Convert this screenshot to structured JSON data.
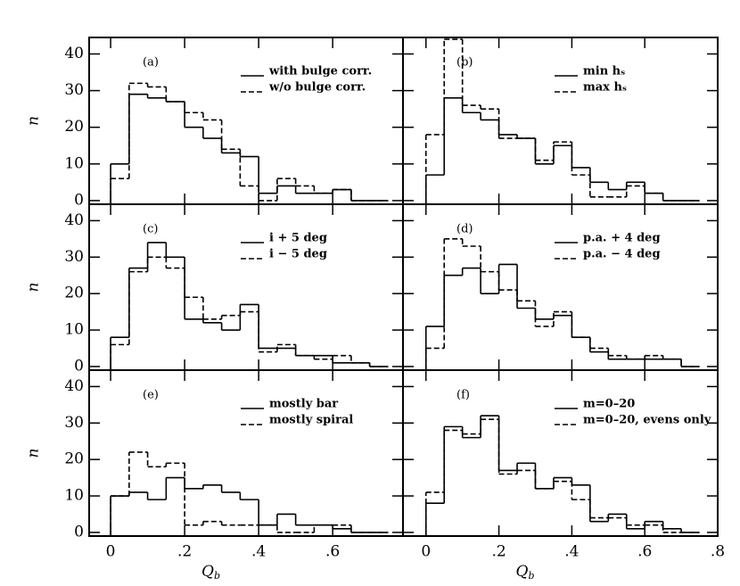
{
  "chart_data": [
    {
      "type": "histogram",
      "panel_label": "(a)",
      "y_label": "n",
      "bins": [
        0,
        0.05,
        0.1,
        0.15,
        0.2,
        0.25,
        0.3,
        0.35,
        0.4,
        0.45,
        0.5,
        0.55,
        0.6,
        0.65,
        0.7,
        0.75
      ],
      "xlim": [
        -0.058,
        0.79
      ],
      "ylim": [
        -1,
        44.5
      ],
      "xticks": [
        0,
        0.2,
        0.4,
        0.6
      ],
      "yticks": [
        0,
        10,
        20,
        30,
        40
      ],
      "series": [
        {
          "name": "with bulge corr.",
          "color": "#000000",
          "dashed": false,
          "values": [
            10,
            29,
            28,
            27,
            20,
            17,
            13,
            12,
            2,
            4,
            2,
            2,
            3,
            0,
            0
          ]
        },
        {
          "name": "w/o bulge corr.",
          "color": "#000000",
          "dashed": true,
          "values": [
            6,
            32,
            31,
            27,
            24,
            22,
            14,
            4,
            0,
            6,
            4,
            2,
            3,
            0,
            0
          ]
        }
      ]
    },
    {
      "type": "histogram",
      "panel_label": "(b)",
      "bins": [
        0,
        0.05,
        0.1,
        0.15,
        0.2,
        0.25,
        0.3,
        0.35,
        0.4,
        0.45,
        0.5,
        0.55,
        0.6,
        0.65,
        0.7,
        0.75
      ],
      "xlim": [
        -0.063,
        0.8
      ],
      "ylim": [
        -1,
        44.5
      ],
      "xticks": [
        0,
        0.2,
        0.4,
        0.6,
        0.8
      ],
      "yticks": [
        0,
        10,
        20,
        30,
        40
      ],
      "series": [
        {
          "name": "min hₛ",
          "color": "#000000",
          "dashed": false,
          "values": [
            7,
            28,
            24,
            22,
            18,
            17,
            10,
            15,
            9,
            5,
            3,
            5,
            2,
            0,
            0
          ]
        },
        {
          "name": "max hₛ",
          "color": "#000000",
          "dashed": true,
          "values": [
            18,
            44,
            26,
            25,
            17,
            17,
            11,
            16,
            7,
            1,
            1,
            4,
            2,
            0,
            0
          ]
        }
      ]
    },
    {
      "type": "histogram",
      "panel_label": "(c)",
      "y_label": "n",
      "bins": [
        0,
        0.05,
        0.1,
        0.15,
        0.2,
        0.25,
        0.3,
        0.35,
        0.4,
        0.45,
        0.5,
        0.55,
        0.6,
        0.65,
        0.7,
        0.75
      ],
      "xlim": [
        -0.058,
        0.79
      ],
      "ylim": [
        -1,
        44.5
      ],
      "xticks": [
        0,
        0.2,
        0.4,
        0.6
      ],
      "yticks": [
        0,
        10,
        20,
        30,
        40
      ],
      "series": [
        {
          "name": "i + 5 deg",
          "color": "#000000",
          "dashed": false,
          "values": [
            8,
            27,
            34,
            30,
            13,
            12,
            10,
            17,
            5,
            5,
            3,
            3,
            1,
            1,
            0
          ]
        },
        {
          "name": "i − 5 deg",
          "color": "#000000",
          "dashed": true,
          "values": [
            6,
            26,
            30,
            27,
            19,
            13,
            14,
            15,
            4,
            6,
            3,
            2,
            3,
            1,
            0
          ]
        }
      ]
    },
    {
      "type": "histogram",
      "panel_label": "(d)",
      "bins": [
        0,
        0.05,
        0.1,
        0.15,
        0.2,
        0.25,
        0.3,
        0.35,
        0.4,
        0.45,
        0.5,
        0.55,
        0.6,
        0.65,
        0.7,
        0.75
      ],
      "xlim": [
        -0.063,
        0.8
      ],
      "ylim": [
        -1,
        44.5
      ],
      "xticks": [
        0,
        0.2,
        0.4,
        0.6,
        0.8
      ],
      "yticks": [
        0,
        10,
        20,
        30,
        40
      ],
      "series": [
        {
          "name": "p.a. + 4 deg",
          "color": "#000000",
          "dashed": false,
          "values": [
            11,
            25,
            27,
            20,
            28,
            16,
            13,
            14,
            8,
            4,
            2,
            2,
            2,
            2,
            0
          ]
        },
        {
          "name": "p.a. − 4 deg",
          "color": "#000000",
          "dashed": true,
          "values": [
            5,
            35,
            33,
            26,
            21,
            18,
            11,
            15,
            8,
            5,
            3,
            2,
            3,
            2,
            0
          ]
        }
      ]
    },
    {
      "type": "histogram",
      "panel_label": "(e)",
      "y_label": "n",
      "x_label": "Q",
      "x_label_sub": "b",
      "bins": [
        0,
        0.05,
        0.1,
        0.15,
        0.2,
        0.25,
        0.3,
        0.35,
        0.4,
        0.45,
        0.5,
        0.55,
        0.6,
        0.65,
        0.7,
        0.75
      ],
      "xlim": [
        -0.058,
        0.79
      ],
      "ylim": [
        -1,
        44.5
      ],
      "xticks": [
        0,
        {
          "value": 0.2,
          "label": ".2"
        },
        {
          "value": 0.4,
          "label": ".4"
        },
        {
          "value": 0.6,
          "label": ".6"
        }
      ],
      "yticks": [
        0,
        10,
        20,
        30,
        40
      ],
      "series": [
        {
          "name": "mostly bar",
          "color": "#000000",
          "dashed": false,
          "values": [
            10,
            11,
            9,
            15,
            12,
            13,
            11,
            9,
            2,
            5,
            2,
            2,
            1,
            0,
            0
          ]
        },
        {
          "name": "mostly spiral",
          "color": "#000000",
          "dashed": true,
          "values": [
            10,
            22,
            18,
            19,
            2,
            3,
            2,
            2,
            2,
            0,
            0,
            2,
            2,
            0,
            0
          ]
        }
      ]
    },
    {
      "type": "histogram",
      "panel_label": "(f)",
      "x_label": "Q",
      "x_label_sub": "b",
      "bins": [
        0,
        0.05,
        0.1,
        0.15,
        0.2,
        0.25,
        0.3,
        0.35,
        0.4,
        0.45,
        0.5,
        0.55,
        0.6,
        0.65,
        0.7,
        0.75
      ],
      "xlim": [
        -0.063,
        0.8
      ],
      "ylim": [
        -1,
        44.5
      ],
      "xticks": [
        0,
        {
          "value": 0.2,
          "label": ".2"
        },
        {
          "value": 0.4,
          "label": ".4"
        },
        {
          "value": 0.6,
          "label": ".6"
        },
        {
          "value": 0.8,
          "label": ".8"
        }
      ],
      "yticks": [
        0,
        10,
        20,
        30,
        40
      ],
      "series": [
        {
          "name": "m=0–20",
          "color": "#000000",
          "dashed": false,
          "values": [
            8,
            29,
            26,
            32,
            17,
            19,
            12,
            15,
            13,
            3,
            5,
            1,
            3,
            1,
            0
          ]
        },
        {
          "name": "m=0–20, evens only",
          "color": "#000000",
          "dashed": true,
          "values": [
            11,
            28,
            27,
            31,
            16,
            17,
            12,
            14,
            9,
            4,
            4,
            2,
            2,
            0,
            0
          ]
        }
      ]
    }
  ]
}
